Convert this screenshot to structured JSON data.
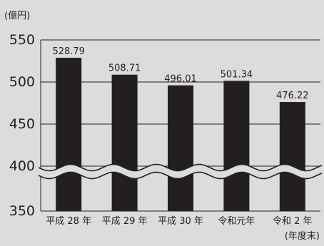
{
  "chart_data": {
    "type": "bar",
    "unit_label": "(億円)",
    "period_label": "(年度末)",
    "categories": [
      "平成 28 年",
      "平成 29 年",
      "平成 30 年",
      "令和元年",
      "令和 2 年"
    ],
    "values": [
      528.79,
      508.71,
      496.01,
      501.34,
      476.22
    ],
    "value_labels": [
      "528.79",
      "508.71",
      "496.01",
      "501.34",
      "476.22"
    ],
    "y_ticks": [
      "550",
      "500",
      "450",
      "400",
      "350"
    ],
    "ylim": [
      350,
      550
    ],
    "axis_break": "wavy break between 350 and 400",
    "grid": true,
    "colors": {
      "background": "#dcdcdd",
      "bar": "#231f20",
      "text": "#231f20"
    }
  }
}
